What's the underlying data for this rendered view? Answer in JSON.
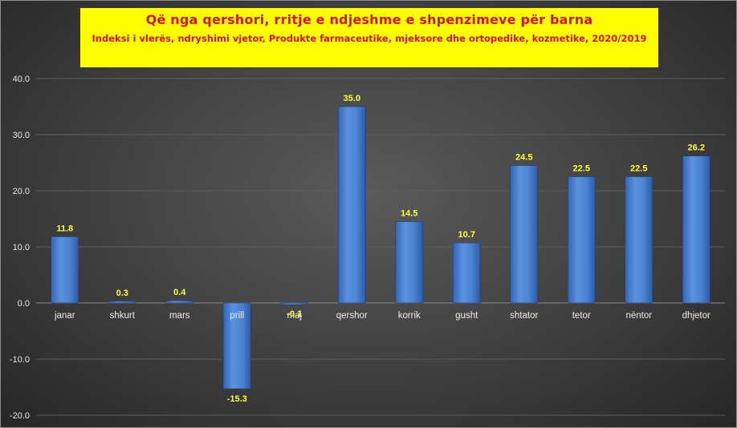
{
  "chart_data": {
    "type": "bar",
    "title": "Që nga qershori, rritje e ndjeshme e shpenzimeve për barna",
    "subtitle": "Indeksi i vlerës, ndryshimi vjetor, Produkte farmaceutike, mjeksore dhe ortopedike, kozmetike, 2020/2019",
    "categories": [
      "janar",
      "shkurt",
      "mars",
      "prill",
      "maj",
      "qershor",
      "korrik",
      "gusht",
      "shtator",
      "tetor",
      "nëntor",
      "dhjetor"
    ],
    "values": [
      11.8,
      0.3,
      0.4,
      -15.3,
      -0.1,
      35.0,
      14.5,
      10.7,
      24.5,
      22.5,
      22.5,
      26.2
    ],
    "data_labels": [
      "11.8",
      "0.3",
      "0.4",
      "-15.3",
      "-0.1",
      "35.0",
      "14.5",
      "10.7",
      "24.5",
      "22.5",
      "22.5",
      "26.2"
    ],
    "yticks": [
      "40.0",
      "30.0",
      "20.0",
      "10.0",
      "0.0",
      "-10.0",
      "-20.0"
    ],
    "ylim": [
      -20,
      40
    ],
    "grid": true,
    "legend": "none",
    "colors": {
      "bar": "#4f86d4",
      "label": "#ffff33",
      "title_bg": "#ffff00",
      "title_text": "#d8102a"
    }
  }
}
